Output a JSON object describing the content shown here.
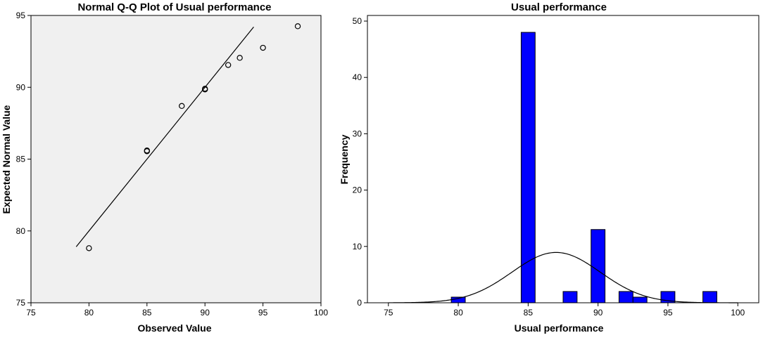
{
  "chart_data": [
    {
      "type": "scatter",
      "title": "Normal Q-Q Plot of Usual performance",
      "xlabel": "Observed Value",
      "ylabel": "Expected Normal Value",
      "xlim": [
        75,
        100
      ],
      "ylim": [
        75,
        95
      ],
      "xticks": [
        "75",
        "80",
        "85",
        "90",
        "95",
        "100"
      ],
      "yticks": [
        "75",
        "80",
        "85",
        "90",
        "95"
      ],
      "background": "#f0f0f0",
      "points": [
        {
          "x": 80,
          "y": 78.8
        },
        {
          "x": 85,
          "y": 85.6
        },
        {
          "x": 85,
          "y": 85.55
        },
        {
          "x": 88,
          "y": 88.7
        },
        {
          "x": 90,
          "y": 89.85
        },
        {
          "x": 90,
          "y": 89.9
        },
        {
          "x": 92,
          "y": 91.55
        },
        {
          "x": 93,
          "y": 92.05
        },
        {
          "x": 95,
          "y": 92.75
        },
        {
          "x": 98,
          "y": 94.25
        }
      ],
      "reference_line": {
        "x": [
          78.9,
          94.2
        ],
        "y": [
          78.9,
          94.2
        ]
      }
    },
    {
      "type": "bar",
      "title": "Usual performance",
      "xlabel": "Usual performance",
      "ylabel": "Frequency",
      "xlim": [
        73.5,
        101.5
      ],
      "ylim": [
        0,
        51
      ],
      "xticks": [
        "75",
        "80",
        "85",
        "90",
        "95",
        "100"
      ],
      "yticks": [
        "0",
        "10",
        "20",
        "30",
        "40",
        "50"
      ],
      "bar_color": "#0000ff",
      "bar_width": 1,
      "bars": [
        {
          "x": 80,
          "value": 1
        },
        {
          "x": 85,
          "value": 48
        },
        {
          "x": 88,
          "value": 2
        },
        {
          "x": 90,
          "value": 13
        },
        {
          "x": 92,
          "value": 2
        },
        {
          "x": 93,
          "value": 1
        },
        {
          "x": 95,
          "value": 2
        },
        {
          "x": 98,
          "value": 2
        }
      ],
      "normal_curve": {
        "mean": 87,
        "sd": 3.17,
        "n": 71
      }
    }
  ]
}
